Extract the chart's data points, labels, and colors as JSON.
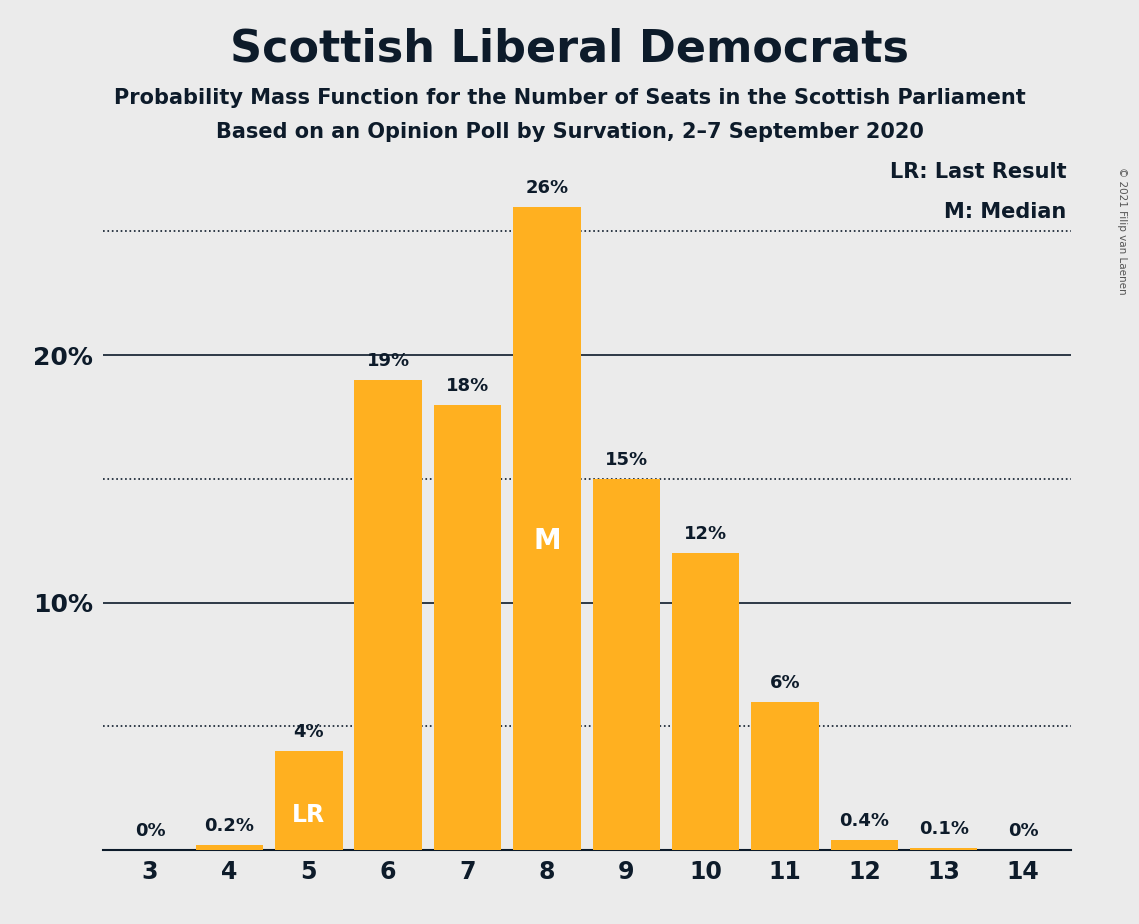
{
  "title": "Scottish Liberal Democrats",
  "subtitle1": "Probability Mass Function for the Number of Seats in the Scottish Parliament",
  "subtitle2": "Based on an Opinion Poll by Survation, 2–7 September 2020",
  "copyright": "© 2021 Filip van Laenen",
  "categories": [
    3,
    4,
    5,
    6,
    7,
    8,
    9,
    10,
    11,
    12,
    13,
    14
  ],
  "values": [
    0.0,
    0.2,
    4.0,
    19.0,
    18.0,
    26.0,
    15.0,
    12.0,
    6.0,
    0.4,
    0.1,
    0.0
  ],
  "labels": [
    "0%",
    "0.2%",
    "4%",
    "19%",
    "18%",
    "26%",
    "15%",
    "12%",
    "6%",
    "0.4%",
    "0.1%",
    "0%"
  ],
  "bar_color": "#FFB020",
  "background_color": "#ebebeb",
  "text_color": "#0d1b2a",
  "label_inside_seat": 5,
  "label_inside_text": "LR",
  "label_inside_color": "white",
  "median_seat": 8,
  "median_text": "M",
  "median_color": "white",
  "legend_lr": "LR: Last Result",
  "legend_m": "M: Median",
  "ylim": [
    0,
    28
  ],
  "solid_lines": [
    10,
    20
  ],
  "dotted_lines": [
    5,
    15,
    25
  ],
  "ytick_show": [
    10,
    20
  ],
  "ytick_labels": [
    "10%",
    "20%"
  ]
}
